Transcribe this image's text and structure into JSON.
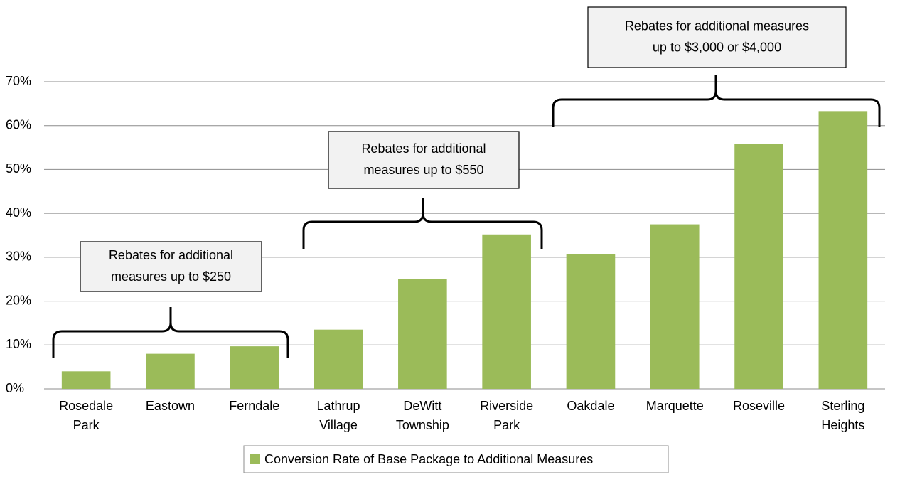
{
  "chart_data": {
    "type": "bar",
    "categories": [
      "Rosedale Park",
      "Eastown",
      "Ferndale",
      "Lathrup Village",
      "DeWitt Township",
      "Riverside Park",
      "Oakdale",
      "Marquette",
      "Roseville",
      "Sterling Heights"
    ],
    "series": [
      {
        "name": "Conversion Rate of Base Package to Additional Measures",
        "color": "#9bbb59",
        "values": [
          4,
          8,
          9.7,
          13.5,
          25,
          35.2,
          30.7,
          37.5,
          55.8,
          63.3
        ]
      }
    ],
    "ylim": [
      0,
      70
    ],
    "yticks": [
      {
        "value": 0,
        "label": "0%"
      },
      {
        "value": 10,
        "label": "10%"
      },
      {
        "value": 20,
        "label": "20%"
      },
      {
        "value": 30,
        "label": "30%"
      },
      {
        "value": 40,
        "label": "40%"
      },
      {
        "value": 50,
        "label": "50%"
      },
      {
        "value": 60,
        "label": "60%"
      },
      {
        "value": 70,
        "label": "70%"
      }
    ],
    "grid": true,
    "legend": "bottom",
    "annotations": [
      {
        "lines": [
          "Rebates for additional",
          "measures up to $250"
        ]
      },
      {
        "lines": [
          "Rebates for additional",
          "measures up to $550"
        ]
      },
      {
        "lines": [
          "Rebates for additional measures",
          "up to $3,000 or $4,000"
        ]
      }
    ]
  }
}
